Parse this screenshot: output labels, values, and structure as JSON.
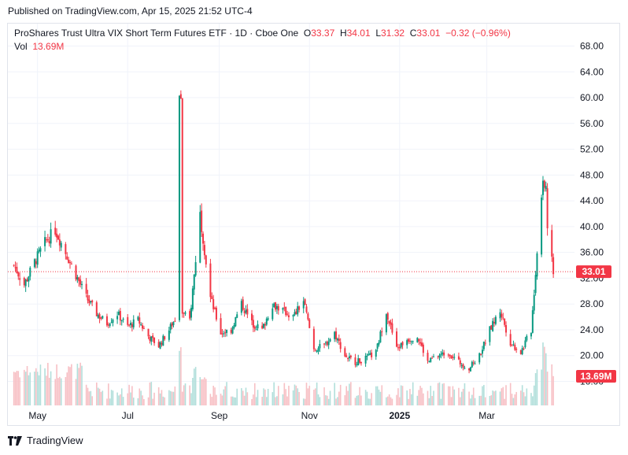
{
  "header": {
    "published": "Published on TradingView.com, Apr 15, 2025 21:52 UTC-4"
  },
  "legend": {
    "symbol": "ProShares Trust Ultra VIX Short Term Futures ETF · 1D · Cboe One",
    "open_label": "O",
    "open": "33.37",
    "high_label": "H",
    "high": "34.01",
    "low_label": "L",
    "low": "31.32",
    "close_label": "C",
    "close": "33.01",
    "change": "−0.32 (−0.96%)",
    "vol_label": "Vol",
    "vol": "13.69M"
  },
  "footer": {
    "brand": "TradingView",
    "logo_icon": "tradingview-logo-icon"
  },
  "colors": {
    "up": "#089981",
    "down": "#f23645",
    "grid": "#f0f3fa",
    "up_vol": "#b2dfdb",
    "down_vol": "#f7c0c5"
  },
  "chart_data": {
    "type": "candlestick",
    "title": "ProShares Trust Ultra VIX Short Term Futures ETF · 1D · Cboe One",
    "y_ticks": [
      "68.00",
      "64.00",
      "60.00",
      "56.00",
      "52.00",
      "48.00",
      "44.00",
      "40.00",
      "36.00",
      "32.00",
      "28.00",
      "24.00",
      "20.00",
      "16.00"
    ],
    "x_ticks": [
      "May",
      "Jul",
      "Sep",
      "Nov",
      "2025",
      "Mar"
    ],
    "x_tick_bold": [
      false,
      false,
      false,
      false,
      true,
      false
    ],
    "ylim": [
      8,
      70
    ],
    "last_price": "33.01",
    "last_volume": "13.69M",
    "series": [
      {
        "name": "price",
        "points": [
          {
            "d": "Apr 15 2024",
            "c": 34.0
          },
          {
            "d": "Apr 22 2024",
            "c": 31.0
          },
          {
            "d": "Apr 29 2024",
            "c": 34.5
          },
          {
            "d": "May 06 2024",
            "c": 37.5
          },
          {
            "d": "May 13 2024",
            "c": 39.5
          },
          {
            "d": "May 20 2024",
            "c": 36.0
          },
          {
            "d": "May 27 2024",
            "c": 32.5
          },
          {
            "d": "Jun 03 2024",
            "c": 29.0
          },
          {
            "d": "Jun 10 2024",
            "c": 26.5
          },
          {
            "d": "Jun 17 2024",
            "c": 25.0
          },
          {
            "d": "Jun 24 2024",
            "c": 26.5
          },
          {
            "d": "Jul 01 2024",
            "c": 24.5
          },
          {
            "d": "Jul 08 2024",
            "c": 25.5
          },
          {
            "d": "Jul 15 2024",
            "c": 23.0
          },
          {
            "d": "Jul 22 2024",
            "c": 21.5
          },
          {
            "d": "Jul 29 2024",
            "c": 24.0
          },
          {
            "d": "Aug 05 2024",
            "c": 27.0
          },
          {
            "d": "Aug 12 2024",
            "c": 25.5
          },
          {
            "d": "Aug 19 2024",
            "c": 42.0
          },
          {
            "d": "Aug 26 2024",
            "c": 29.0
          },
          {
            "d": "Sep 02 2024",
            "c": 23.5
          },
          {
            "d": "Sep 09 2024",
            "c": 24.0
          },
          {
            "d": "Sep 16 2024",
            "c": 28.0
          },
          {
            "d": "Sep 23 2024",
            "c": 25.0
          },
          {
            "d": "Sep 30 2024",
            "c": 24.0
          },
          {
            "d": "Oct 07 2024",
            "c": 28.0
          },
          {
            "d": "Oct 14 2024",
            "c": 27.0
          },
          {
            "d": "Oct 21 2024",
            "c": 26.0
          },
          {
            "d": "Oct 28 2024",
            "c": 28.5
          },
          {
            "d": "Nov 04 2024",
            "c": 21.0
          },
          {
            "d": "Nov 11 2024",
            "c": 21.5
          },
          {
            "d": "Nov 18 2024",
            "c": 23.5
          },
          {
            "d": "Nov 25 2024",
            "c": 20.0
          },
          {
            "d": "Dec 02 2024",
            "c": 19.0
          },
          {
            "d": "Dec 09 2024",
            "c": 19.5
          },
          {
            "d": "Dec 16 2024",
            "c": 20.5
          },
          {
            "d": "Dec 23 2024",
            "c": 27.0
          },
          {
            "d": "Dec 30 2024",
            "c": 21.0
          },
          {
            "d": "Jan 06 2025",
            "c": 22.5
          },
          {
            "d": "Jan 13 2025",
            "c": 23.0
          },
          {
            "d": "Jan 20 2025",
            "c": 19.0
          },
          {
            "d": "Jan 27 2025",
            "c": 20.0
          },
          {
            "d": "Feb 03 2025",
            "c": 20.5
          },
          {
            "d": "Feb 10 2025",
            "c": 19.0
          },
          {
            "d": "Feb 17 2025",
            "c": 18.0
          },
          {
            "d": "Feb 24 2025",
            "c": 20.0
          },
          {
            "d": "Mar 03 2025",
            "c": 24.0
          },
          {
            "d": "Mar 10 2025",
            "c": 27.0
          },
          {
            "d": "Mar 17 2025",
            "c": 22.0
          },
          {
            "d": "Mar 24 2025",
            "c": 20.5
          },
          {
            "d": "Mar 31 2025",
            "c": 24.0
          },
          {
            "d": "Apr 07 2025",
            "c": 45.0
          },
          {
            "d": "Apr 15 2025",
            "c": 33.01
          }
        ]
      }
    ]
  }
}
